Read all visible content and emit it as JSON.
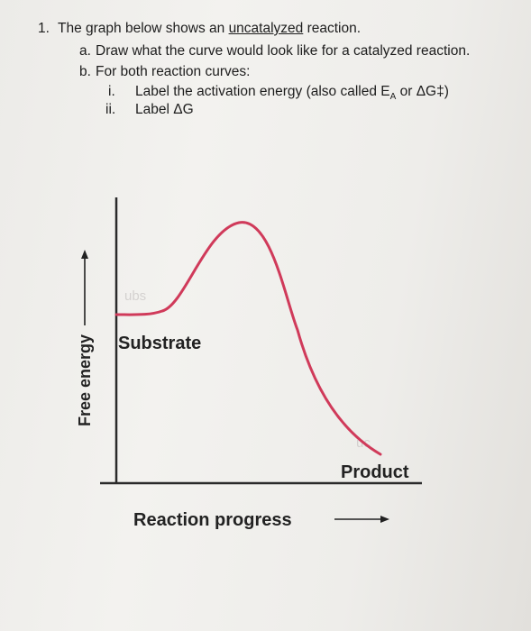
{
  "question": {
    "number": "1.",
    "lead_before": "The graph below shows an ",
    "lead_underlined": "uncatalyzed",
    "lead_after": " reaction.",
    "a_label": "a.",
    "a_text": "Draw what the curve would look like for a catalyzed reaction.",
    "b_label": "b.",
    "b_text": "For both reaction curves:",
    "i_label": "i.",
    "i_text_before": "Label the activation energy (also called E",
    "i_text_sub": "A",
    "i_text_after": " or ΔG‡)",
    "ii_label": "ii.",
    "ii_text": "Label ΔG"
  },
  "graph": {
    "ylabel": "Free energy",
    "xlabel": "Reaction progress",
    "substrate_label": "Substrate",
    "product_label": "Product",
    "curve_color": "#d03a5a"
  }
}
